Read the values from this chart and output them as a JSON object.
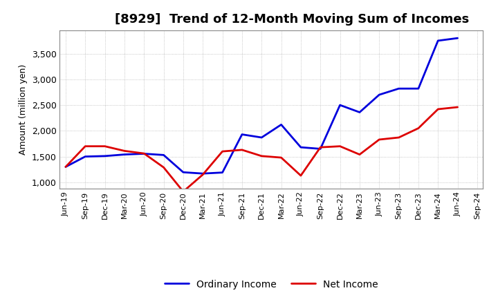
{
  "title": "[8929]  Trend of 12-Month Moving Sum of Incomes",
  "ylabel": "Amount (million yen)",
  "background_color": "#ffffff",
  "grid_color": "#999999",
  "plot_bg_color": "#ffffff",
  "ordinary_income_color": "#0000dd",
  "net_income_color": "#dd0000",
  "x_labels": [
    "Jun-19",
    "Sep-19",
    "Dec-19",
    "Mar-20",
    "Jun-20",
    "Sep-20",
    "Dec-20",
    "Mar-21",
    "Jun-21",
    "Sep-21",
    "Dec-21",
    "Mar-22",
    "Jun-22",
    "Sep-22",
    "Dec-22",
    "Mar-23",
    "Jun-23",
    "Sep-23",
    "Dec-23",
    "Mar-24",
    "Jun-24",
    "Sep-24"
  ],
  "ordinary_income": [
    1300,
    1500,
    1510,
    1540,
    1555,
    1530,
    1195,
    1170,
    1190,
    1930,
    1870,
    2120,
    1680,
    1650,
    2500,
    2360,
    2700,
    2820,
    2820,
    3750,
    3800,
    null
  ],
  "net_income": [
    1300,
    1700,
    1700,
    1610,
    1560,
    1290,
    820,
    1150,
    1600,
    1630,
    1510,
    1480,
    1130,
    1680,
    1700,
    1540,
    1830,
    1870,
    2050,
    2420,
    2460,
    null
  ],
  "ylim": [
    880,
    3950
  ],
  "yticks": [
    1000,
    1500,
    2000,
    2500,
    3000,
    3500
  ],
  "legend_labels": [
    "Ordinary Income",
    "Net Income"
  ],
  "title_fontsize": 13,
  "ylabel_fontsize": 9,
  "ytick_fontsize": 9,
  "xtick_fontsize": 8,
  "legend_fontsize": 10,
  "linewidth": 2.0
}
